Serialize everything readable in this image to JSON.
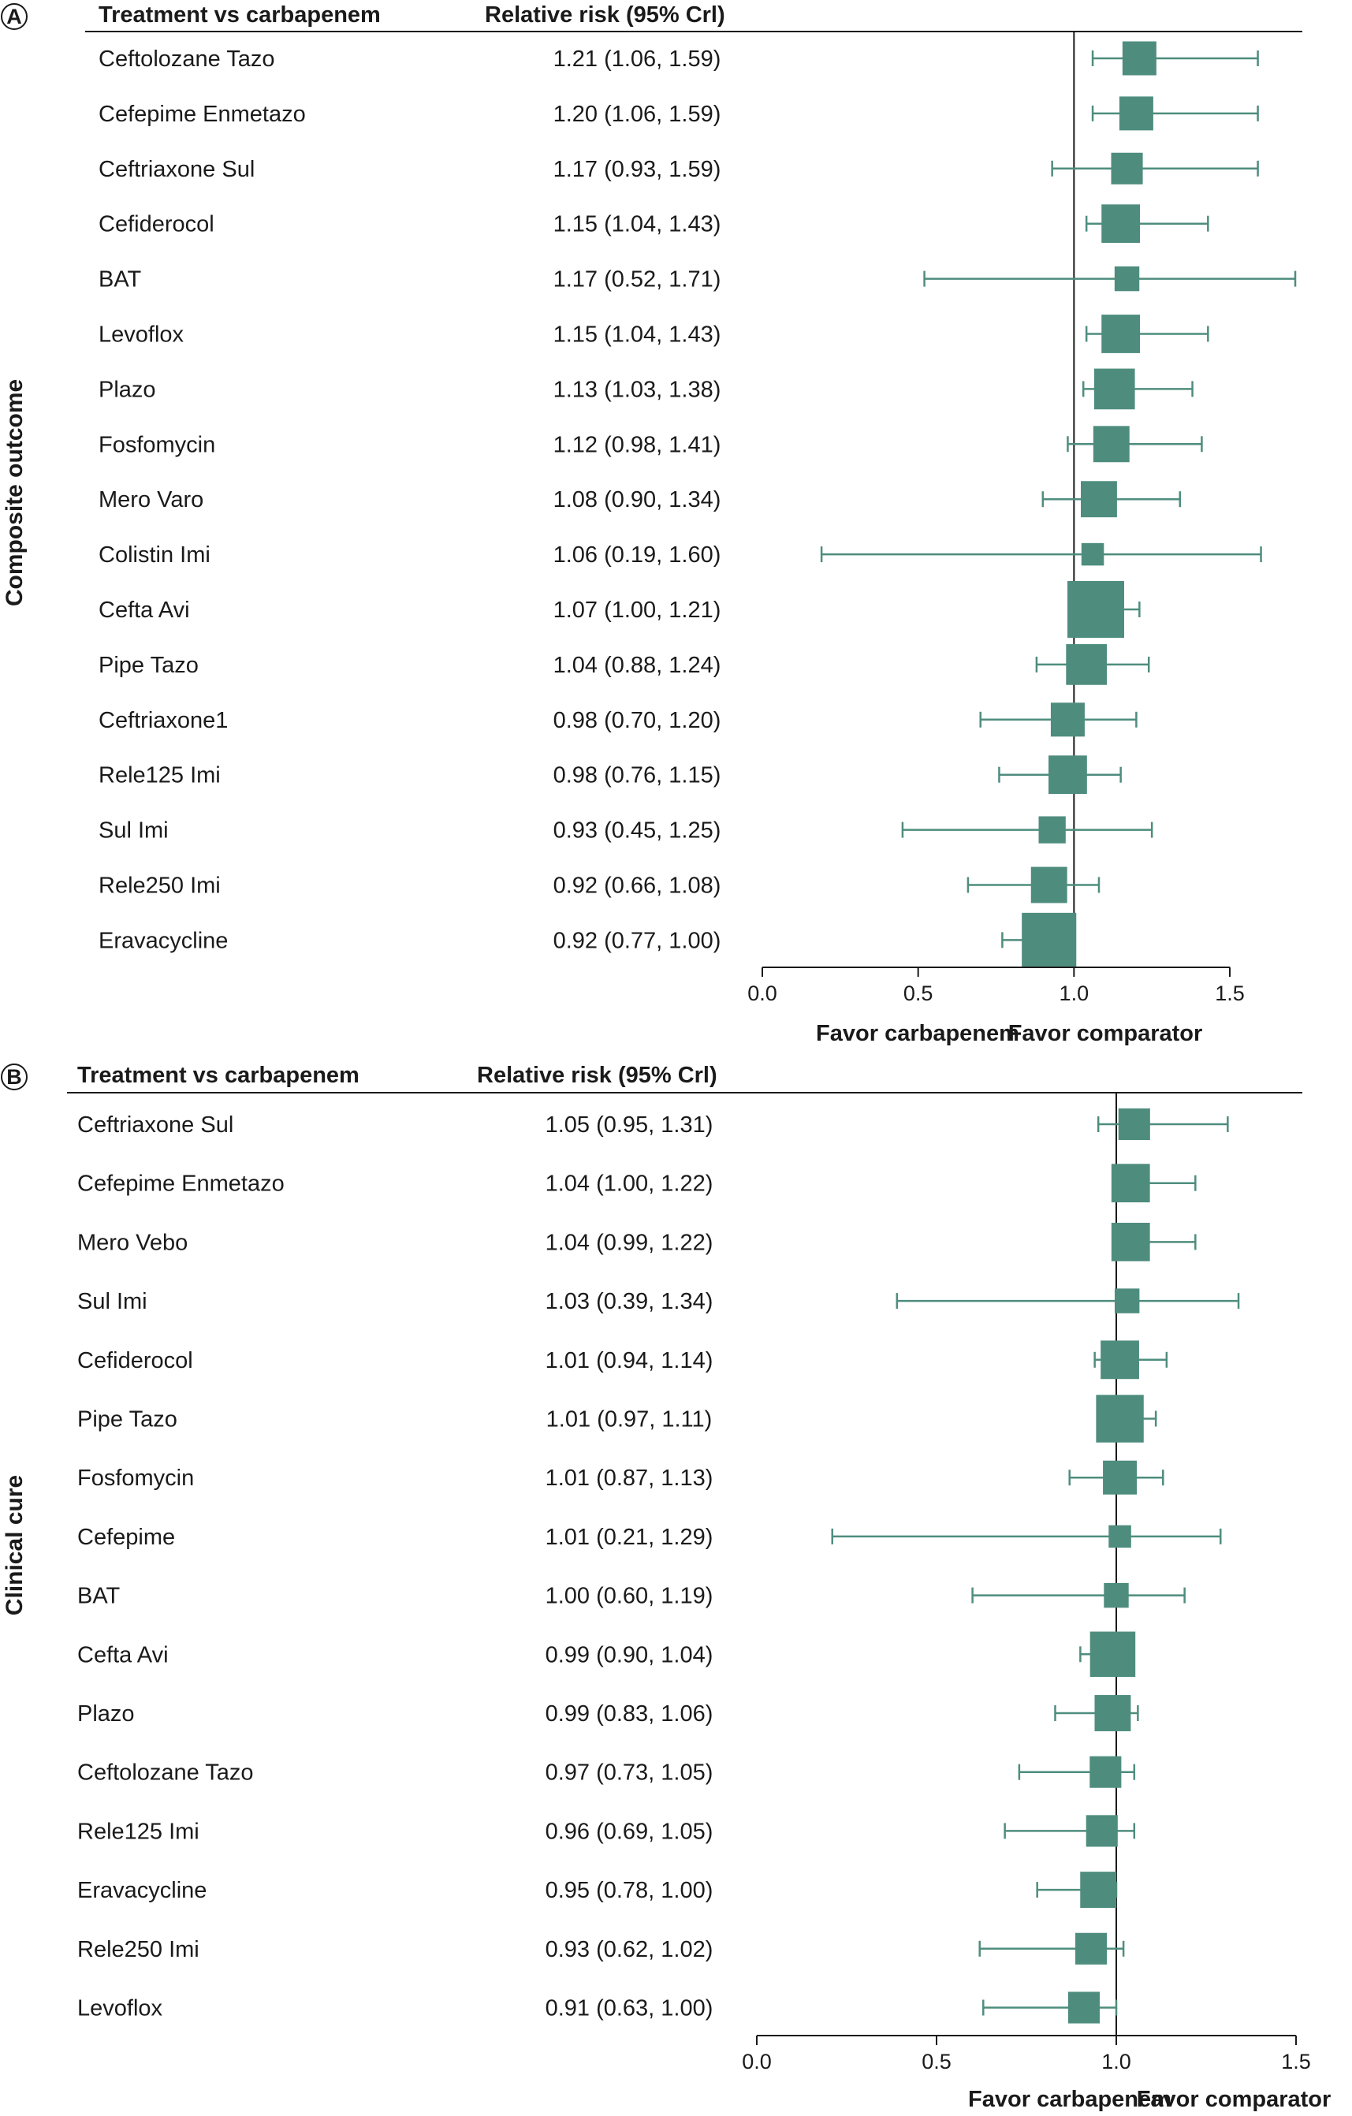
{
  "colors": {
    "marker": "#4e8d7e",
    "axis": "#1a1a1a"
  },
  "chart_data": [
    {
      "type": "forest",
      "panel_label": "A",
      "outcome": "Composite outcome",
      "headers": {
        "treatment": "Treatment vs carbapenem",
        "estimate": "Relative risk (95% Crl)"
      },
      "xlim": [
        0.0,
        1.5
      ],
      "ticks": [
        {
          "value": 0.0,
          "label": "0.0"
        },
        {
          "value": 0.5,
          "label": "0.5"
        },
        {
          "value": 1.0,
          "label": "1.0"
        },
        {
          "value": 1.5,
          "label": "1.5"
        }
      ],
      "reference": 1.0,
      "favor_left": "Favor carbapenem",
      "favor_right": "Favor comparator",
      "rows": [
        {
          "name": "Ceftolozane Tazo",
          "label": "1.21 (1.06, 1.59)",
          "est": 1.21,
          "lo": 1.06,
          "hi": 1.59,
          "weight": 0.5
        },
        {
          "name": "Cefepime Enmetazo",
          "label": "1.20 (1.06, 1.59)",
          "est": 1.2,
          "lo": 1.06,
          "hi": 1.59,
          "weight": 0.5
        },
        {
          "name": "Ceftriaxone Sul",
          "label": "1.17 (0.93, 1.59)",
          "est": 1.17,
          "lo": 0.93,
          "hi": 1.59,
          "weight": 0.45
        },
        {
          "name": "Cefiderocol",
          "label": "1.15 (1.04, 1.43)",
          "est": 1.15,
          "lo": 1.04,
          "hi": 1.43,
          "weight": 0.6
        },
        {
          "name": "BAT",
          "label": "1.17 (0.52, 1.71)",
          "est": 1.17,
          "lo": 0.52,
          "hi": 1.71,
          "weight": 0.3
        },
        {
          "name": "Levoflox",
          "label": "1.15 (1.04, 1.43)",
          "est": 1.15,
          "lo": 1.04,
          "hi": 1.43,
          "weight": 0.6
        },
        {
          "name": "Plazo",
          "label": "1.13 (1.03, 1.38)",
          "est": 1.13,
          "lo": 1.03,
          "hi": 1.38,
          "weight": 0.65
        },
        {
          "name": "Fosfomycin",
          "label": "1.12 (0.98, 1.41)",
          "est": 1.12,
          "lo": 0.98,
          "hi": 1.41,
          "weight": 0.55
        },
        {
          "name": "Mero Varo",
          "label": "1.08 (0.90, 1.34)",
          "est": 1.08,
          "lo": 0.9,
          "hi": 1.34,
          "weight": 0.55
        },
        {
          "name": "Colistin Imi",
          "label": "1.06 (0.19, 1.60)",
          "est": 1.06,
          "lo": 0.19,
          "hi": 1.6,
          "weight": 0.25
        },
        {
          "name": "Cefta Avi",
          "label": "1.07 (1.00, 1.21)",
          "est": 1.07,
          "lo": 1.0,
          "hi": 1.21,
          "weight": 1.0
        },
        {
          "name": "Pipe Tazo",
          "label": "1.04 (0.88, 1.24)",
          "est": 1.04,
          "lo": 0.88,
          "hi": 1.24,
          "weight": 0.65
        },
        {
          "name": "Ceftriaxone1",
          "label": "0.98 (0.70, 1.20)",
          "est": 0.98,
          "lo": 0.7,
          "hi": 1.2,
          "weight": 0.5
        },
        {
          "name": "Rele125 Imi",
          "label": "0.98 (0.76, 1.15)",
          "est": 0.98,
          "lo": 0.76,
          "hi": 1.15,
          "weight": 0.6
        },
        {
          "name": "Sul Imi",
          "label": "0.93 (0.45, 1.25)",
          "est": 0.93,
          "lo": 0.45,
          "hi": 1.25,
          "weight": 0.35
        },
        {
          "name": "Rele250 Imi",
          "label": "0.92 (0.66, 1.08)",
          "est": 0.92,
          "lo": 0.66,
          "hi": 1.08,
          "weight": 0.55
        },
        {
          "name": "Eravacycline",
          "label": "0.92 (0.77, 1.00)",
          "est": 0.92,
          "lo": 0.77,
          "hi": 1.0,
          "weight": 0.95
        }
      ]
    },
    {
      "type": "forest",
      "panel_label": "B",
      "outcome": "Clinical cure",
      "headers": {
        "treatment": "Treatment vs carbapenem",
        "estimate": "Relative risk (95% Crl)"
      },
      "xlim": [
        0.0,
        1.5
      ],
      "ticks": [
        {
          "value": 0.0,
          "label": "0.0"
        },
        {
          "value": 0.5,
          "label": "0.5"
        },
        {
          "value": 1.0,
          "label": "1.0"
        },
        {
          "value": 1.5,
          "label": "1.5"
        }
      ],
      "reference": 1.0,
      "favor_left": "Favor carbapenem",
      "favor_right": "Favor comparator",
      "rows": [
        {
          "name": "Ceftriaxone Sul",
          "label": "1.05 (0.95, 1.31)",
          "est": 1.05,
          "lo": 0.95,
          "hi": 1.31,
          "weight": 0.45
        },
        {
          "name": "Cefepime Enmetazo",
          "label": "1.04 (1.00, 1.22)",
          "est": 1.04,
          "lo": 1.0,
          "hi": 1.22,
          "weight": 0.6
        },
        {
          "name": "Mero Vebo",
          "label": "1.04 (0.99, 1.22)",
          "est": 1.04,
          "lo": 0.99,
          "hi": 1.22,
          "weight": 0.6
        },
        {
          "name": "Sul Imi",
          "label": "1.03 (0.39, 1.34)",
          "est": 1.03,
          "lo": 0.39,
          "hi": 1.34,
          "weight": 0.3
        },
        {
          "name": "Cefiderocol",
          "label": "1.01 (0.94, 1.14)",
          "est": 1.01,
          "lo": 0.94,
          "hi": 1.14,
          "weight": 0.6
        },
        {
          "name": "Pipe Tazo",
          "label": "1.01 (0.97, 1.11)",
          "est": 1.01,
          "lo": 0.97,
          "hi": 1.11,
          "weight": 0.8
        },
        {
          "name": "Fosfomycin",
          "label": "1.01 (0.87, 1.13)",
          "est": 1.01,
          "lo": 0.87,
          "hi": 1.13,
          "weight": 0.5
        },
        {
          "name": "Cefepime",
          "label": "1.01 (0.21, 1.29)",
          "est": 1.01,
          "lo": 0.21,
          "hi": 1.29,
          "weight": 0.25
        },
        {
          "name": "BAT",
          "label": "1.00 (0.60, 1.19)",
          "est": 1.0,
          "lo": 0.6,
          "hi": 1.19,
          "weight": 0.3
        },
        {
          "name": "Cefta Avi",
          "label": "0.99 (0.90, 1.04)",
          "est": 0.99,
          "lo": 0.9,
          "hi": 1.04,
          "weight": 0.75
        },
        {
          "name": "Plazo",
          "label": "0.99 (0.83, 1.06)",
          "est": 0.99,
          "lo": 0.83,
          "hi": 1.06,
          "weight": 0.55
        },
        {
          "name": "Ceftolozane Tazo",
          "label": "0.97 (0.73, 1.05)",
          "est": 0.97,
          "lo": 0.73,
          "hi": 1.05,
          "weight": 0.45
        },
        {
          "name": "Rele125 Imi",
          "label": "0.96 (0.69, 1.05)",
          "est": 0.96,
          "lo": 0.69,
          "hi": 1.05,
          "weight": 0.45
        },
        {
          "name": "Eravacycline",
          "label": "0.95 (0.78, 1.00)",
          "est": 0.95,
          "lo": 0.78,
          "hi": 1.0,
          "weight": 0.55
        },
        {
          "name": "Rele250 Imi",
          "label": "0.93 (0.62, 1.02)",
          "est": 0.93,
          "lo": 0.62,
          "hi": 1.02,
          "weight": 0.45
        },
        {
          "name": "Levoflox",
          "label": "0.91 (0.63, 1.00)",
          "est": 0.91,
          "lo": 0.63,
          "hi": 1.0,
          "weight": 0.45
        }
      ]
    }
  ]
}
